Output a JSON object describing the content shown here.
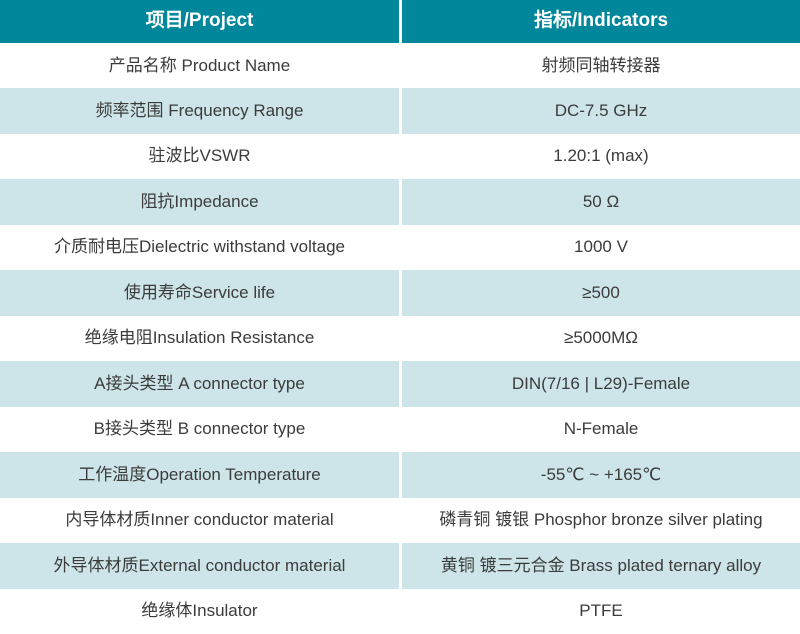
{
  "table": {
    "header": {
      "project": "项目/Project",
      "indicators": "指标/Indicators"
    },
    "rows": [
      {
        "project": "产品名称 Product Name",
        "indicator": "射频同轴转接器"
      },
      {
        "project": "频率范围 Frequency Range",
        "indicator": "DC-7.5 GHz"
      },
      {
        "project": "驻波比VSWR",
        "indicator": "1.20:1 (max)"
      },
      {
        "project": "阻抗Impedance",
        "indicator": "50 Ω"
      },
      {
        "project": "介质耐电压Dielectric withstand voltage",
        "indicator": "1000 V"
      },
      {
        "project": "使用寿命Service life",
        "indicator": "≥500"
      },
      {
        "project": "绝缘电阻Insulation Resistance",
        "indicator": "≥5000MΩ"
      },
      {
        "project": "A接头类型 A connector type",
        "indicator": "DIN(7/16 | L29)-Female"
      },
      {
        "project": "B接头类型 B connector type",
        "indicator": "N-Female"
      },
      {
        "project": "工作温度Operation Temperature",
        "indicator": "-55℃ ~ +165℃"
      },
      {
        "project": "内导体材质Inner conductor material",
        "indicator": "磷青铜 镀银 Phosphor bronze silver plating"
      },
      {
        "project": "外导体材质External conductor material",
        "indicator": "黄铜 镀三元合金 Brass plated ternary alloy"
      },
      {
        "project": "绝缘体Insulator",
        "indicator": "PTFE"
      }
    ]
  },
  "colors": {
    "header_bg": "#00879b",
    "header_text": "#ffffff",
    "row_alt_bg": "#cde5e9",
    "row_bg": "#ffffff",
    "text": "#3b3b3b",
    "divider": "#ffffff"
  }
}
